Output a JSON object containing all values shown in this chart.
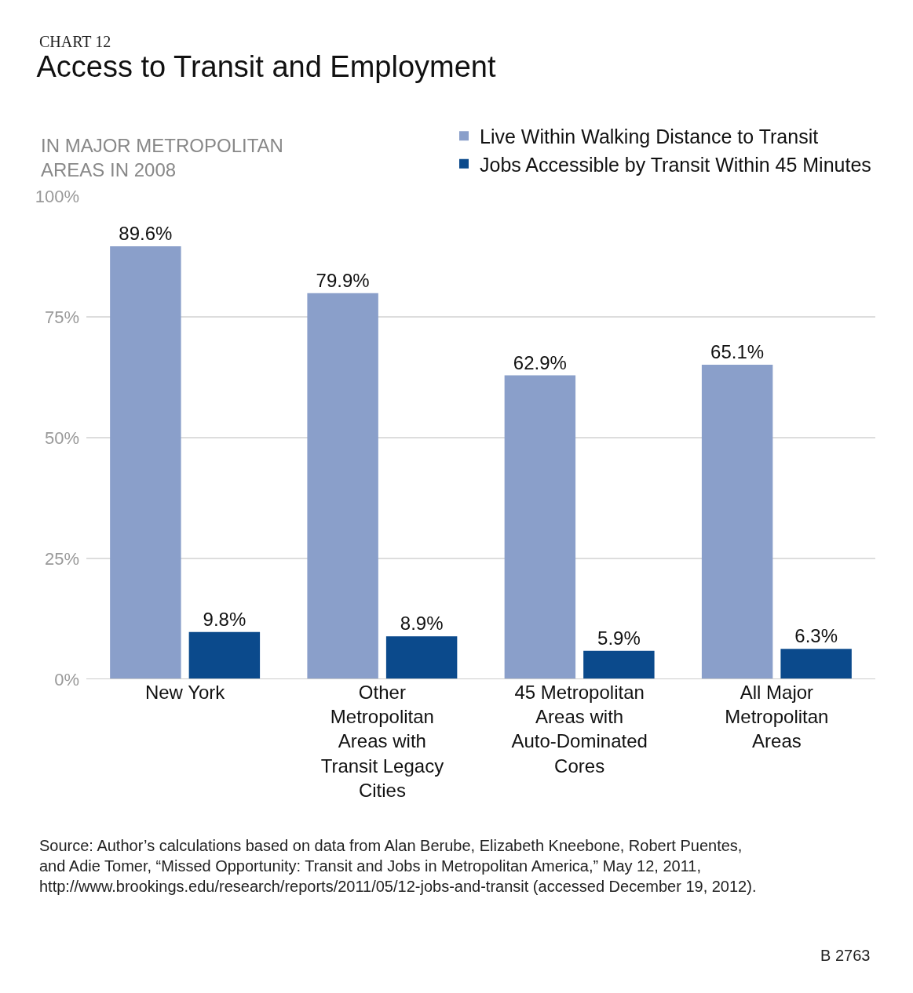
{
  "chart_data": {
    "type": "bar",
    "title": "Access to Transit and Employment",
    "subtitle": "IN MAJOR METROPOLITAN AREAS IN 2008",
    "categories": [
      "New York",
      "Other Metropolitan Areas with Transit Legacy Cities",
      "45 Metropolitan Areas with Auto-Dominated Cores",
      "All Major Metropolitan Areas"
    ],
    "series": [
      {
        "name": "Live Within Walking Distance to Transit",
        "color": "#8a9fca",
        "values": [
          89.6,
          79.9,
          62.9,
          65.1
        ],
        "value_labels": [
          "89.6%",
          "79.9%",
          "62.9%",
          "65.1%"
        ]
      },
      {
        "name": "Jobs Accessible by Transit Within 45 Minutes",
        "color": "#0b4a8c",
        "values": [
          9.8,
          8.9,
          5.9,
          6.3
        ],
        "value_labels": [
          "9.8%",
          "8.9%",
          "5.9%",
          "6.3%"
        ]
      }
    ],
    "ylim": [
      0,
      100
    ],
    "yticks": [
      {
        "value": 0,
        "label": "0%"
      },
      {
        "value": 25,
        "label": "25%"
      },
      {
        "value": 50,
        "label": "50%"
      },
      {
        "value": 75,
        "label": "75%"
      },
      {
        "value": 100,
        "label": "100%"
      }
    ],
    "grid": "y",
    "legend": "top right",
    "annotations": [
      "CHART 12",
      "Source: Author’s calculations based on data from Alan Berube, Elizabeth Kneebone, Robert Puentes, and Adie Tomer, “Missed Opportunity: Transit and Jobs in Metropolitan America,” May 12, 2011, http://www.brookings.edu/research/reports/2011/05/12-jobs-and-transit (accessed December 19, 2012).",
      "B 2763"
    ]
  }
}
